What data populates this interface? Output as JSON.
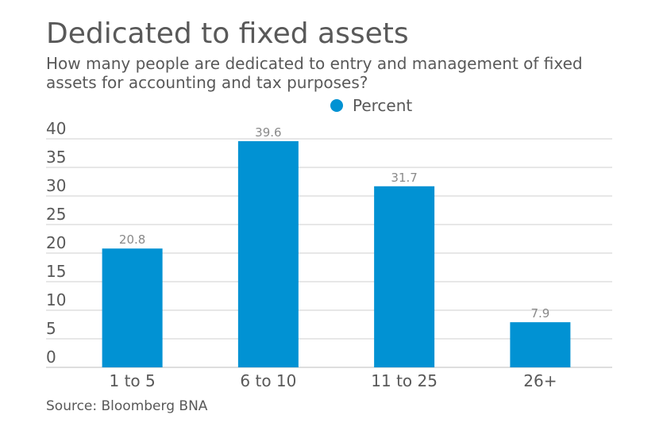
{
  "chart_data": {
    "type": "bar",
    "title": "Dedicated to fixed assets",
    "subtitle": "How many people are dedicated to entry and management of fixed assets for accounting and tax purposes?",
    "categories": [
      "1 to 5",
      "6 to 10",
      "11 to 25",
      "26+"
    ],
    "series": [
      {
        "name": "Percent",
        "values": [
          20.8,
          39.6,
          31.7,
          7.9
        ],
        "color": "#0192d3"
      }
    ],
    "data_labels": [
      "20.8",
      "39.6",
      "31.7",
      "7.9"
    ],
    "y_ticks": [
      "0",
      "5",
      "10",
      "15",
      "20",
      "25",
      "30",
      "35",
      "40"
    ],
    "ylim": [
      0,
      40
    ],
    "xlabel": "",
    "ylabel": "",
    "grid": true,
    "legend_position": "top-center",
    "source": "Source: Bloomberg BNA"
  }
}
